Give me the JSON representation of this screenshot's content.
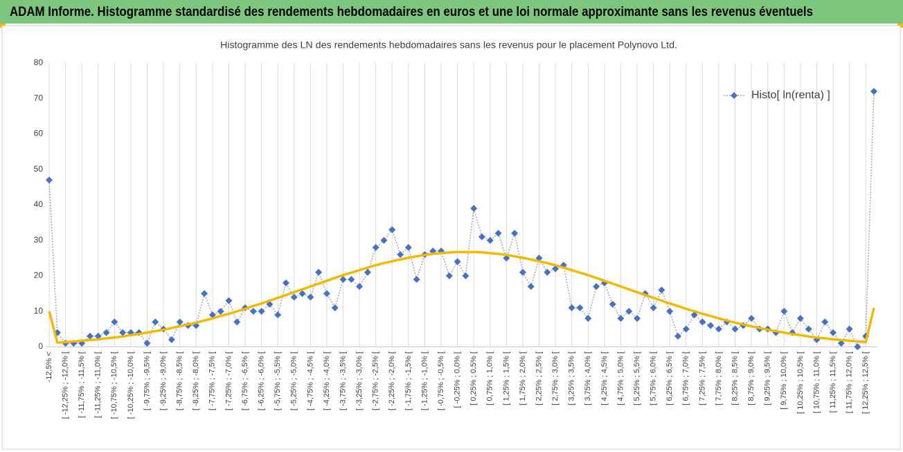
{
  "header": {
    "title": "ADAM Informe. Histogramme standardisé des rendements hebdomadaires en euros et une loi normale approximante sans les revenus éventuels"
  },
  "chart_data": {
    "type": "line",
    "title": "Histogramme des LN des rendements hebdomadaires sans les revenus pour le placement Polynovo Ltd.",
    "categories": [
      "-12,5% <",
      null,
      "[ -12,25% ; -12,0% [",
      null,
      "[ -11,75% ; -11,5% [",
      null,
      "[ -11,25% ; -11,0% [",
      null,
      "[ -10,75% ; -10,5% [",
      null,
      "[ -10,25% ; -10,0% [",
      null,
      "[ -9,75% ; -9,5% [",
      null,
      "[ -9,25% ; -9,0% [",
      null,
      "[ -8,75% ; -8,5% [",
      null,
      "[ -8,25% ; -8,0% [",
      null,
      "[ -7,75% ; -7,5% [",
      null,
      "[ -7,25% ; -7,0% [",
      null,
      "[ -6,75% ; -6,5% [",
      null,
      "[ -6,25% ; -6,0% [",
      null,
      "[ -5,75% ; -5,5% [",
      null,
      "[ -5,25% ; -5,0% [",
      null,
      "[ -4,75% ; -4,5% [",
      null,
      "[ -4,25% ; -4,0% [",
      null,
      "[ -3,75% ; -3,5% [",
      null,
      "[ -3,25% ; -3,0% [",
      null,
      "[ -2,75% ; -2,5% [",
      null,
      "[ -2,25% ; -2,0% [",
      null,
      "[ -1,75% ; -1,5% [",
      null,
      "[ -1,25% ; -1,0% [",
      null,
      "[ -0,75% ; -0,5% [",
      null,
      "[ -0,25% ; 0,0% [",
      null,
      "[ 0,25% ; 0,5% [",
      null,
      "[ 0,75% ; 1,0% [",
      null,
      "[ 1,25% ; 1,5% [",
      null,
      "[ 1,75% ; 2,0% [",
      null,
      "[ 2,25% ; 2,5% [",
      null,
      "[ 2,75% ; 3,0% [",
      null,
      "[ 3,25% ; 3,5% [",
      null,
      "[ 3,75% ; 4,0% [",
      null,
      "[ 4,25% ; 4,5% [",
      null,
      "[ 4,75% ; 5,0% [",
      null,
      "[ 5,25% ; 5,5% [",
      null,
      "[ 5,75% ; 6,0% [",
      null,
      "[ 6,25% ; 6,5% [",
      null,
      "[ 6,75% ; 7,0% [",
      null,
      "[ 7,25% ; 7,5% [",
      null,
      "[ 7,75% ; 8,0% [",
      null,
      "[ 8,25% ; 8,5% [",
      null,
      "[ 8,75% ; 9,0% [",
      null,
      "[ 9,25% ; 9,5% [",
      null,
      "[ 9,75% ; 10,0% [",
      null,
      "[ 10,25% ; 10,5% [",
      null,
      "[ 10,75% ; 11,0% [",
      null,
      "[ 11,25% ; 11,5% [",
      null,
      "[ 11,75% ; 12,0% [",
      null,
      "[ 12,25% ; 12,5% [",
      null
    ],
    "series": [
      {
        "name": "Histo[ ln(renta) ]",
        "color": "#4472c4",
        "line_color": "#a6a6a6",
        "line_style": "dotted",
        "marker": "diamond",
        "values": [
          47,
          4,
          1,
          1,
          1,
          3,
          3,
          4,
          7,
          4,
          4,
          4,
          1,
          7,
          5,
          2,
          7,
          6,
          6,
          15,
          9,
          10,
          13,
          7,
          11,
          10,
          10,
          12,
          9,
          18,
          14,
          15,
          14,
          21,
          15,
          11,
          19,
          19,
          17,
          21,
          28,
          30,
          33,
          26,
          28,
          19,
          26,
          27,
          27,
          20,
          24,
          20,
          39,
          31,
          30,
          32,
          25,
          32,
          21,
          17,
          25,
          21,
          22,
          23,
          11,
          11,
          8,
          17,
          18,
          12,
          8,
          10,
          8,
          15,
          11,
          16,
          10,
          3,
          5,
          9,
          7,
          6,
          5,
          7,
          5,
          6,
          8,
          5,
          5,
          4,
          10,
          4,
          8,
          5,
          2,
          7,
          4,
          1,
          5,
          0,
          3,
          72
        ]
      },
      {
        "color": "#f5b700",
        "line_style": "solid",
        "marker": "none",
        "values": [
          10,
          1.2,
          1.3,
          1.5,
          1.7,
          1.9,
          2.1,
          2.4,
          2.6,
          2.9,
          3.3,
          3.6,
          4.0,
          4.4,
          4.8,
          5.3,
          5.8,
          6.3,
          6.8,
          7.4,
          8.0,
          8.7,
          9.3,
          10.0,
          10.7,
          11.5,
          12.2,
          13.0,
          13.8,
          14.6,
          15.4,
          16.2,
          17.0,
          17.8,
          18.6,
          19.4,
          20.2,
          20.9,
          21.6,
          22.3,
          23.0,
          23.6,
          24.1,
          24.6,
          25.1,
          25.5,
          25.9,
          26.2,
          26.4,
          26.6,
          26.7,
          26.7,
          26.7,
          26.6,
          26.4,
          26.2,
          25.9,
          25.5,
          25.1,
          24.6,
          24.1,
          23.6,
          23.0,
          22.3,
          21.6,
          20.9,
          20.2,
          19.4,
          18.6,
          17.8,
          17.0,
          16.2,
          15.4,
          14.6,
          13.8,
          13.0,
          12.2,
          11.5,
          10.7,
          10.0,
          9.3,
          8.7,
          8.0,
          7.4,
          6.8,
          6.3,
          5.8,
          5.3,
          4.8,
          4.4,
          4.0,
          3.6,
          3.3,
          2.9,
          2.6,
          2.4,
          2.1,
          1.9,
          1.7,
          1.5,
          1.3,
          11
        ]
      }
    ],
    "ylim": [
      0,
      80
    ],
    "yticks": [
      0,
      10,
      20,
      30,
      40,
      50,
      60,
      70,
      80
    ],
    "grid": "x",
    "legend": "top-right"
  }
}
